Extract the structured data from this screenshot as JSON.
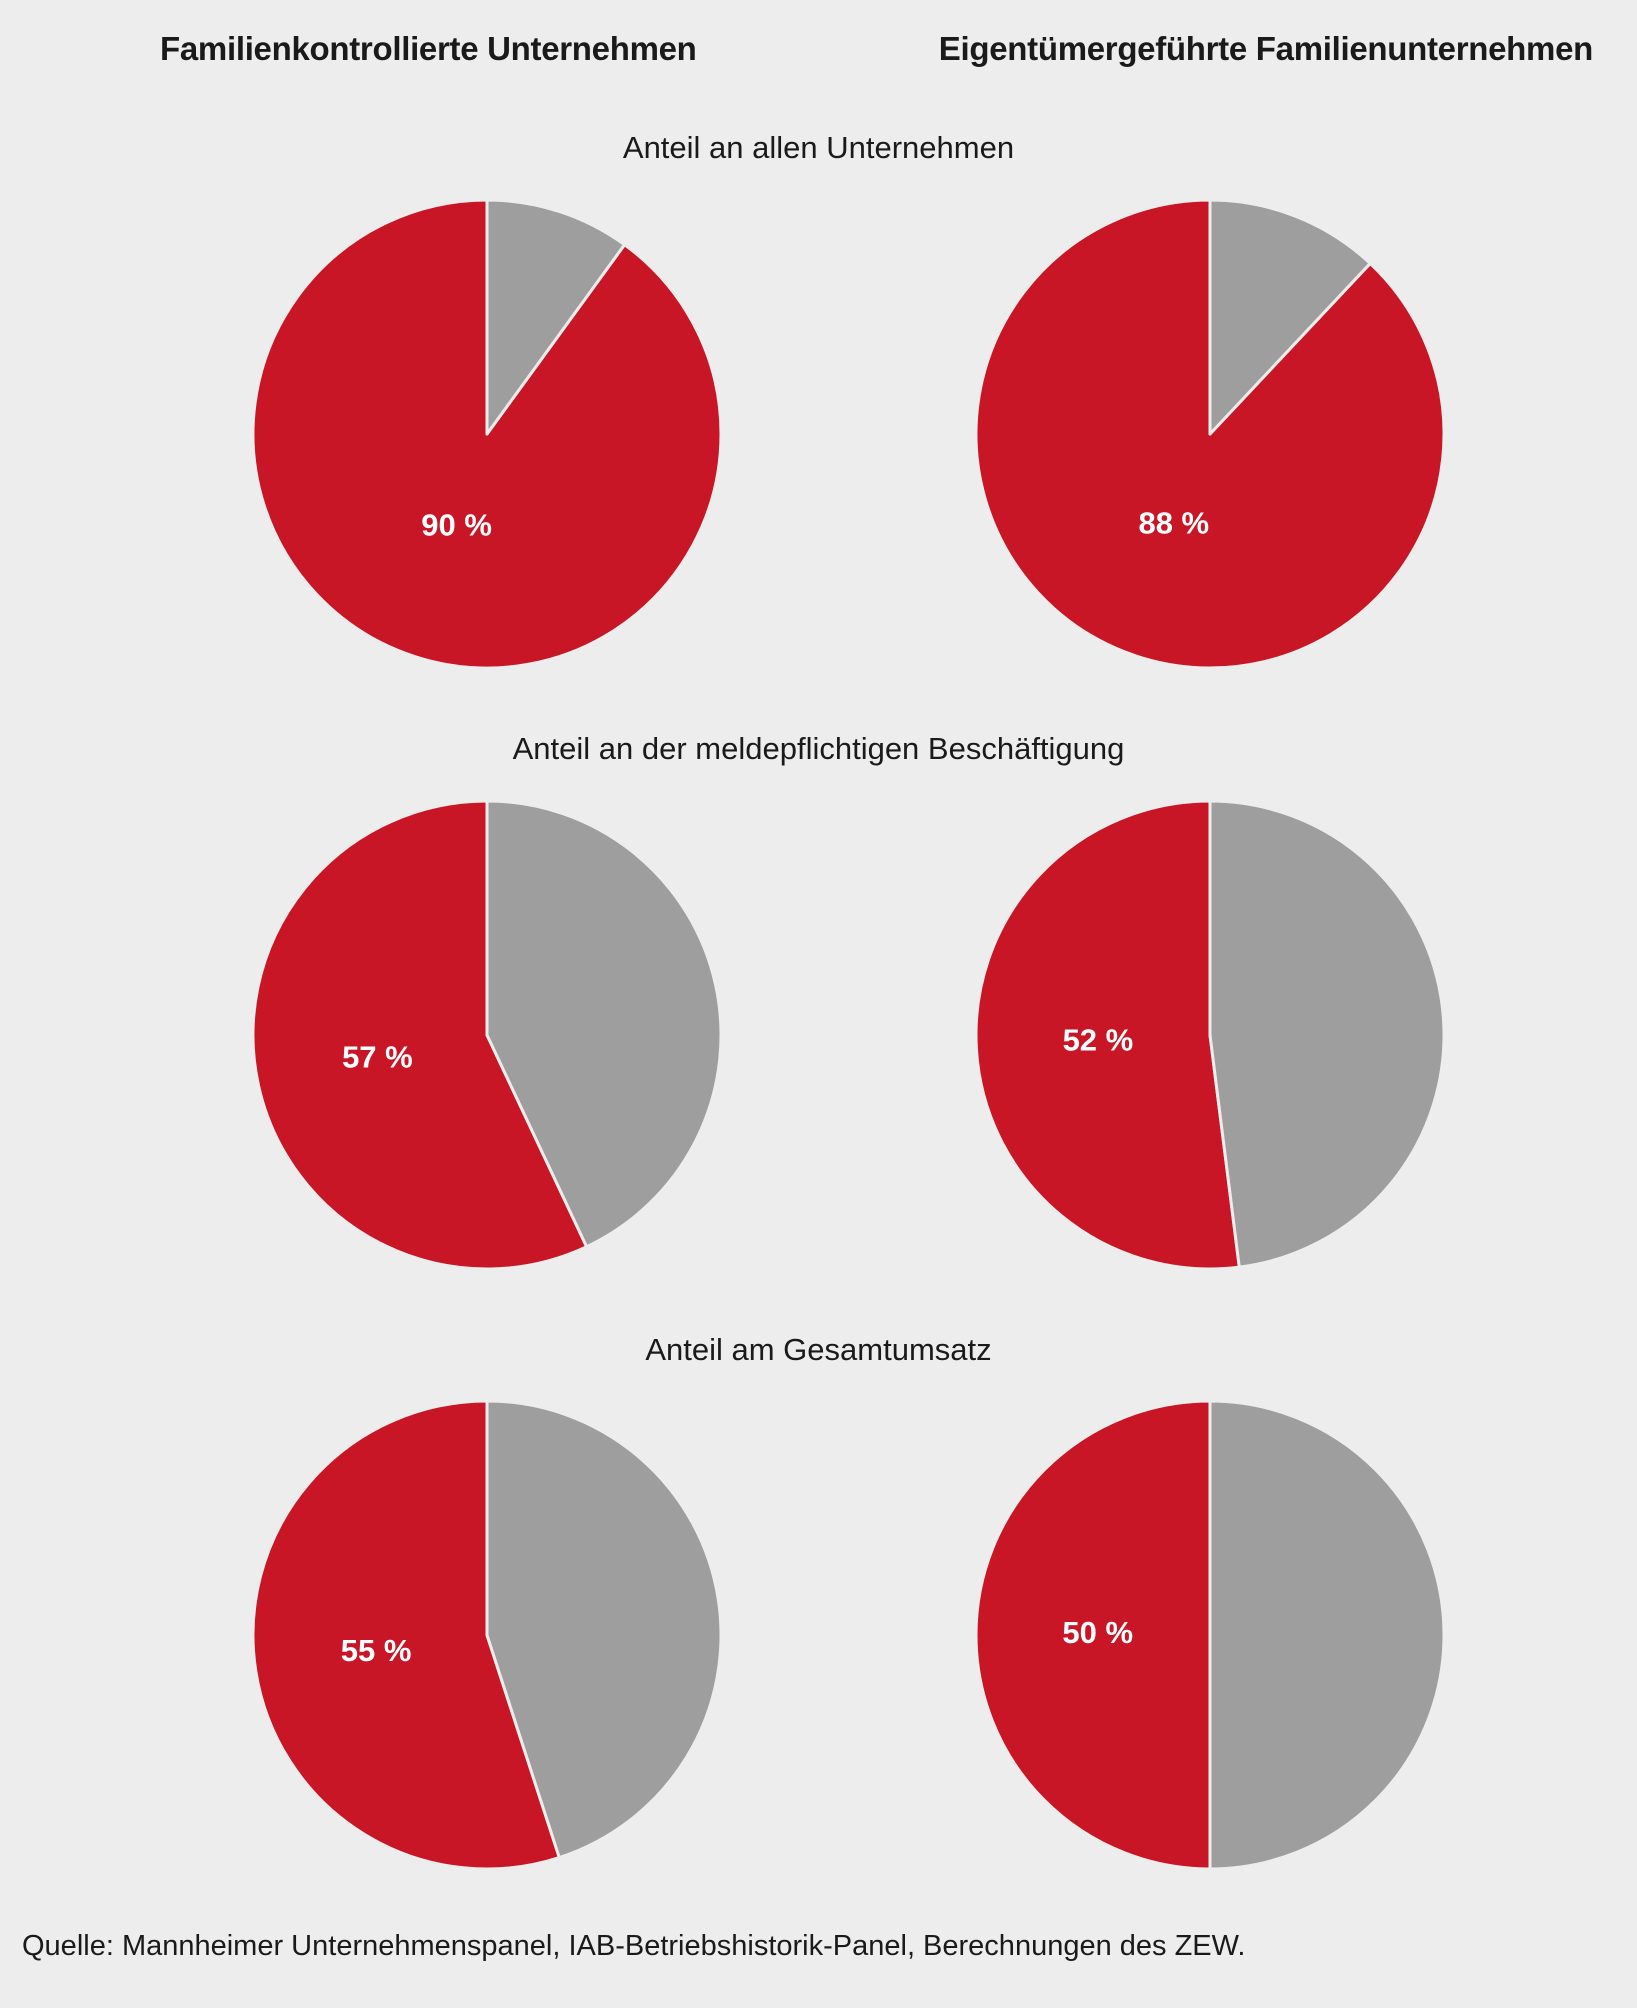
{
  "chart_data": {
    "type": "pie",
    "columns": [
      "Familienkontrollierte Unternehmen",
      "Eigentümergeführte Familienunternehmen"
    ],
    "rows": [
      "Anteil an allen Unternehmen",
      "Anteil an der meldepflichtigen Beschäftigung",
      "Anteil am Gesamtumsatz"
    ],
    "pies": [
      {
        "row": 0,
        "column": 0,
        "value": 90,
        "label": "90 %"
      },
      {
        "row": 0,
        "column": 1,
        "value": 88,
        "label": "88 %"
      },
      {
        "row": 1,
        "column": 0,
        "value": 57,
        "label": "57 %"
      },
      {
        "row": 1,
        "column": 1,
        "value": 52,
        "label": "52 %"
      },
      {
        "row": 2,
        "column": 0,
        "value": 55,
        "label": "55 %"
      },
      {
        "row": 2,
        "column": 1,
        "value": 50,
        "label": "50 %"
      }
    ],
    "colors": {
      "highlight": "#c91627",
      "rest": "#9e9e9e",
      "divider": "#ededed"
    }
  },
  "source": "Quelle: Mannheimer Unternehmenspanel, IAB-Betriebshistorik-Panel, Berechnungen des ZEW."
}
